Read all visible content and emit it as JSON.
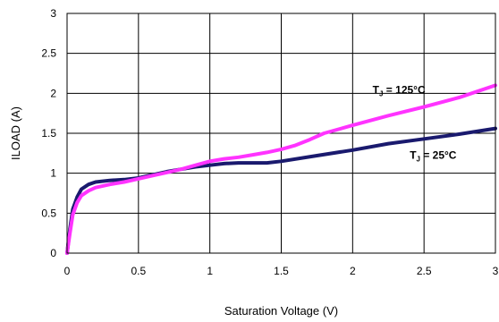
{
  "chart_data": {
    "type": "line",
    "xlabel": "Saturation Voltage (V)",
    "ylabel": "ILOAD (A)",
    "xlim": [
      0,
      3
    ],
    "ylim": [
      0,
      3
    ],
    "xticks": [
      "0",
      "0.5",
      "1",
      "1.5",
      "2",
      "2.5",
      "3"
    ],
    "yticks": [
      "0",
      "0.5",
      "1",
      "1.5",
      "2",
      "2.5",
      "3"
    ],
    "grid": true,
    "series": [
      {
        "name": "TJ = 25°C",
        "color": "#1a1a6e",
        "points": [
          [
            0,
            0
          ],
          [
            0.02,
            0.3
          ],
          [
            0.04,
            0.55
          ],
          [
            0.07,
            0.7
          ],
          [
            0.1,
            0.8
          ],
          [
            0.15,
            0.86
          ],
          [
            0.2,
            0.89
          ],
          [
            0.3,
            0.91
          ],
          [
            0.4,
            0.92
          ],
          [
            0.5,
            0.94
          ],
          [
            0.6,
            0.98
          ],
          [
            0.7,
            1.02
          ],
          [
            0.8,
            1.05
          ],
          [
            0.9,
            1.08
          ],
          [
            1.0,
            1.1
          ],
          [
            1.1,
            1.12
          ],
          [
            1.2,
            1.13
          ],
          [
            1.3,
            1.13
          ],
          [
            1.4,
            1.13
          ],
          [
            1.5,
            1.15
          ],
          [
            1.75,
            1.22
          ],
          [
            2.0,
            1.29
          ],
          [
            2.25,
            1.37
          ],
          [
            2.5,
            1.43
          ],
          [
            2.75,
            1.49
          ],
          [
            3.0,
            1.56
          ]
        ]
      },
      {
        "name": "TJ = 125°C",
        "color": "#ff33ff",
        "points": [
          [
            0,
            0
          ],
          [
            0.02,
            0.25
          ],
          [
            0.04,
            0.48
          ],
          [
            0.07,
            0.63
          ],
          [
            0.1,
            0.72
          ],
          [
            0.15,
            0.78
          ],
          [
            0.2,
            0.82
          ],
          [
            0.3,
            0.86
          ],
          [
            0.4,
            0.89
          ],
          [
            0.5,
            0.93
          ],
          [
            0.6,
            0.97
          ],
          [
            0.7,
            1.01
          ],
          [
            0.8,
            1.05
          ],
          [
            0.9,
            1.1
          ],
          [
            1.0,
            1.15
          ],
          [
            1.1,
            1.18
          ],
          [
            1.2,
            1.2
          ],
          [
            1.3,
            1.23
          ],
          [
            1.4,
            1.26
          ],
          [
            1.5,
            1.3
          ],
          [
            1.6,
            1.35
          ],
          [
            1.7,
            1.42
          ],
          [
            1.8,
            1.5
          ],
          [
            2.0,
            1.6
          ],
          [
            2.25,
            1.72
          ],
          [
            2.5,
            1.83
          ],
          [
            2.75,
            1.95
          ],
          [
            3.0,
            2.1
          ]
        ]
      }
    ],
    "annotations": [
      {
        "main": "T",
        "sub": "J",
        "rest": " = 125°C",
        "x": 2.14,
        "y": 2.0
      },
      {
        "main": "T",
        "sub": "J",
        "rest": " = 25°C",
        "x": 2.4,
        "y": 1.18
      }
    ]
  }
}
